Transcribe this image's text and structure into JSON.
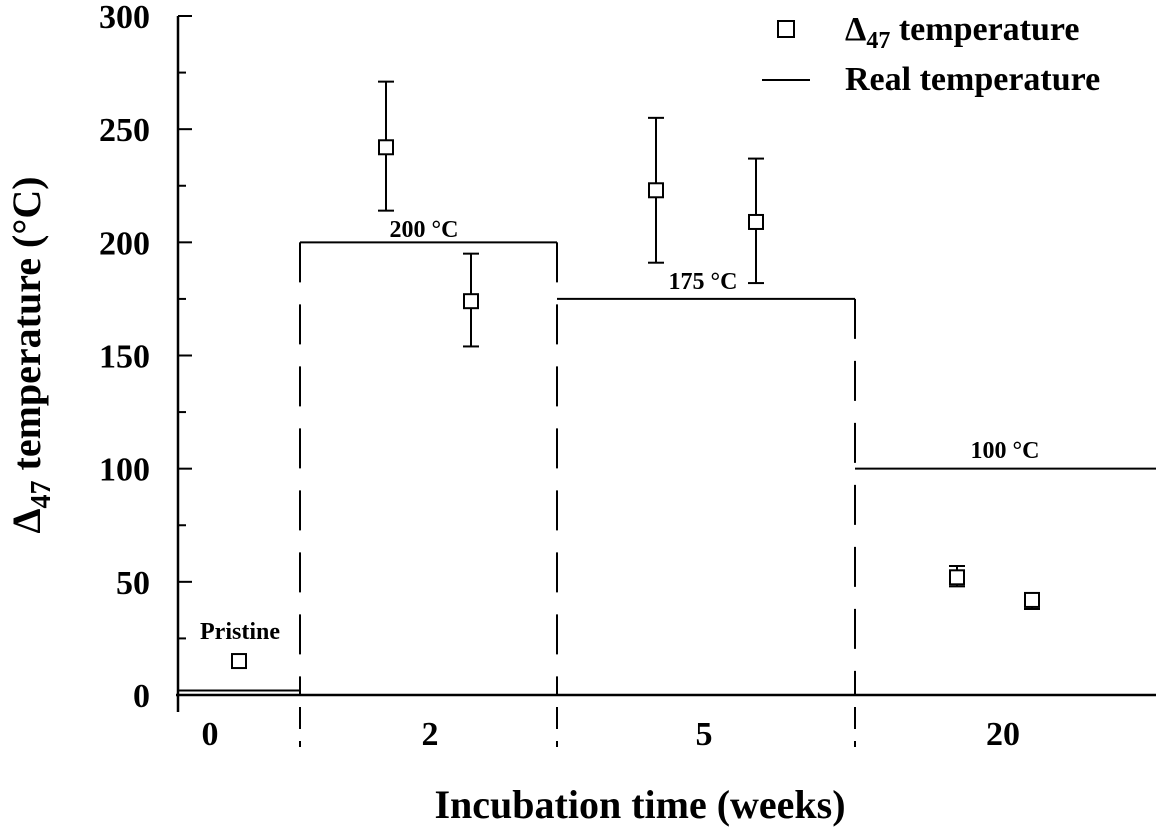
{
  "chart_data": {
    "type": "scatter",
    "title": "",
    "xlabel": "Incubation time (weeks)",
    "ylabel": {
      "delta": "Δ",
      "sub": "47",
      "rest": " temperature (°C)"
    },
    "ylim": [
      0,
      300
    ],
    "y_ticks": [
      "0",
      "50",
      "100",
      "150",
      "200",
      "250",
      "300"
    ],
    "x_categories": [
      "0",
      "2",
      "5",
      "20"
    ],
    "grid": false,
    "legend_position": "top-right",
    "legend": [
      {
        "marker": "open-square",
        "symbol": "Δ",
        "sub": "47",
        "rest": " temperature"
      },
      {
        "marker": "line",
        "label": "Real temperature"
      }
    ],
    "series": [
      {
        "name": "Δ47 temperature",
        "marker": "open-square",
        "points": [
          {
            "category": "0",
            "y": 15,
            "err_low": 15,
            "err_high": 15
          },
          {
            "category": "2",
            "y": 242,
            "err_low": 214,
            "err_high": 271
          },
          {
            "category": "2",
            "y": 174,
            "err_low": 154,
            "err_high": 195
          },
          {
            "category": "5",
            "y": 223,
            "err_low": 191,
            "err_high": 255
          },
          {
            "category": "5",
            "y": 209,
            "err_low": 182,
            "err_high": 237
          },
          {
            "category": "20",
            "y": 52,
            "err_low": 48,
            "err_high": 57
          },
          {
            "category": "20",
            "y": 42,
            "err_low": 38,
            "err_high": 45
          }
        ]
      },
      {
        "name": "Real temperature",
        "type": "step",
        "segments": [
          {
            "category": "0",
            "y": 2
          },
          {
            "category": "2",
            "y": 200
          },
          {
            "category": "5",
            "y": 175
          },
          {
            "category": "20",
            "y": 100
          }
        ]
      }
    ],
    "annotations": [
      {
        "text": "Pristine",
        "category": "0"
      },
      {
        "text": "200 °C",
        "category": "2"
      },
      {
        "text": "175 °C",
        "category": "5"
      },
      {
        "text": "100 °C",
        "category": "20"
      }
    ]
  }
}
